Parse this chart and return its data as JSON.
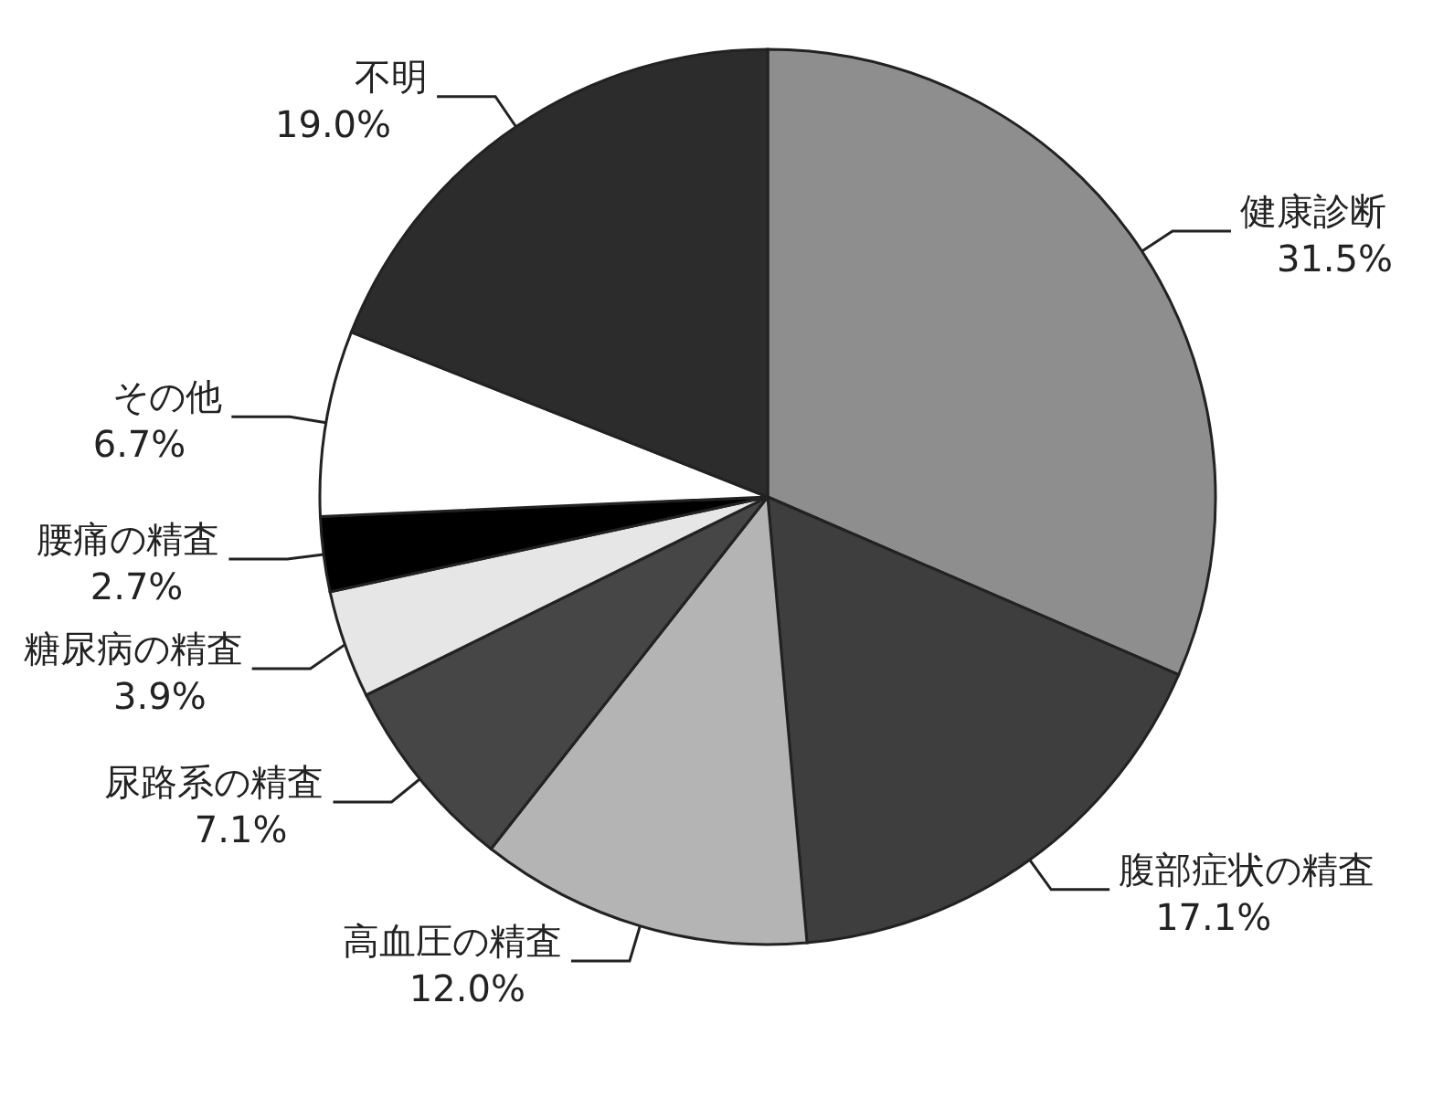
{
  "chart_data": {
    "type": "pie",
    "categories": [
      "健康診断",
      "腹部症状の精査",
      "高血圧の精査",
      "尿路系の精査",
      "糖尿病の精査",
      "腰痛の精査",
      "その他",
      "不明"
    ],
    "values": [
      31.5,
      17.1,
      12.0,
      7.1,
      3.9,
      2.7,
      6.7,
      19.0
    ],
    "value_labels": [
      "31.5%",
      "17.1%",
      "12.0%",
      "7.1%",
      "3.9%",
      "2.7%",
      "6.7%",
      "19.0%"
    ],
    "colors": [
      "#8e8e8e",
      "#3e3e3e",
      "#b4b4b4",
      "#464646",
      "#e6e6e6",
      "#000000",
      "#ffffff",
      "#2c2c2c"
    ]
  }
}
